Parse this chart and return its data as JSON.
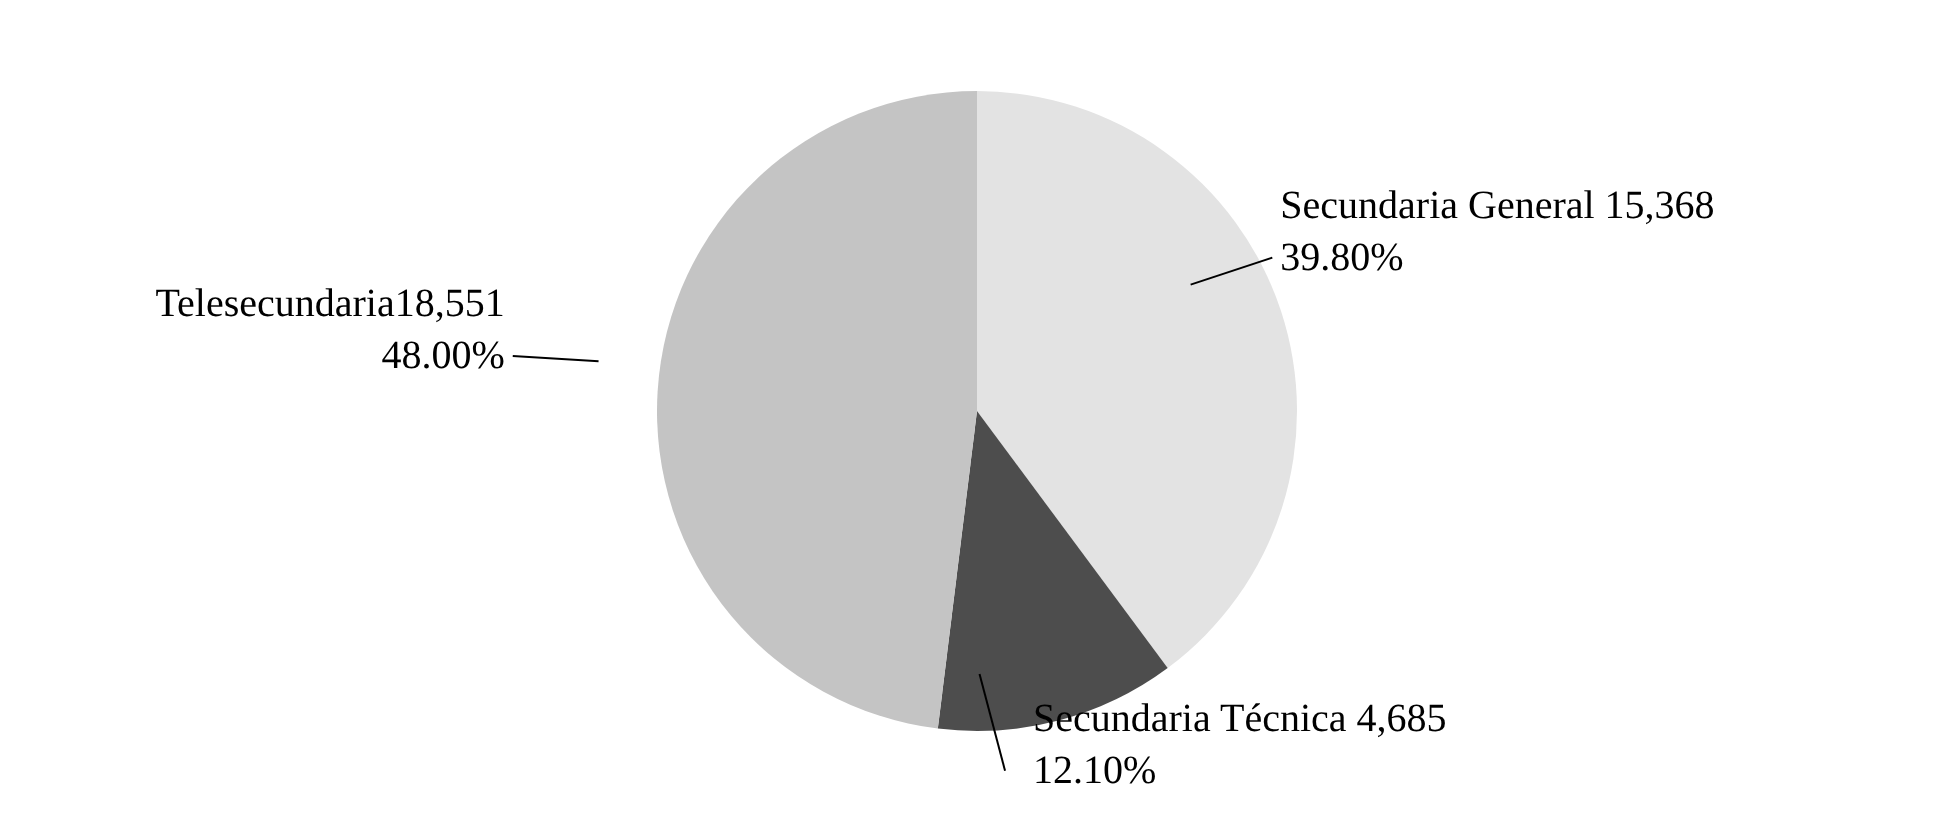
{
  "chart_data": {
    "type": "pie",
    "categories": [
      "Secundaria General 15,368",
      "Secundaria Técnica 4,685",
      "Telesecundaria18,551"
    ],
    "values": [
      39.8,
      12.1,
      48.0
    ],
    "value_labels": [
      "39.80%",
      "12.10%",
      "48.00%"
    ],
    "colors": [
      "#e3e3e3",
      "#4d4d4d",
      "#c4c4c4"
    ],
    "legend": false
  }
}
